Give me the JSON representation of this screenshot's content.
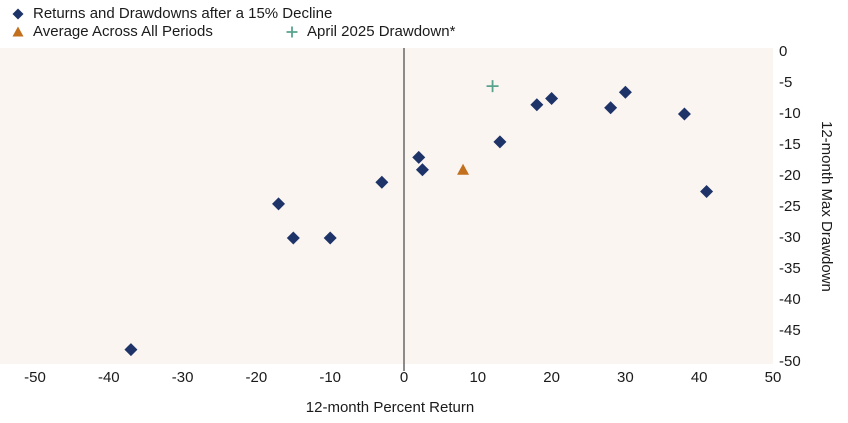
{
  "chart_data": {
    "type": "scatter",
    "title": "Returns and Drawdowns after a 15% Decline",
    "xlabel": "12-month Percent Return",
    "ylabel": "12-month Max Drawdown",
    "xlim": [
      -50,
      50
    ],
    "ylim": [
      -50,
      0
    ],
    "x_ticks": [
      -50,
      -40,
      -30,
      -20,
      -10,
      0,
      10,
      20,
      30,
      40,
      50
    ],
    "y_ticks": [
      0,
      -5,
      -10,
      -15,
      -20,
      -25,
      -30,
      -35,
      -40,
      -45,
      -50
    ],
    "grid": false,
    "legend_position": "top-left",
    "plot_bg_color": "#fbf5f2",
    "zero_line_color": "#707070",
    "text_color": "#1b1b1b",
    "series": [
      {
        "name": "Returns and Drawdowns after a 15% Decline",
        "marker": "diamond",
        "color": "#1e3468",
        "points": [
          [
            -37,
            -48
          ],
          [
            -17,
            -24.5
          ],
          [
            -15,
            -30
          ],
          [
            -10,
            -30
          ],
          [
            -3,
            -21
          ],
          [
            2,
            -17
          ],
          [
            2.5,
            -19
          ],
          [
            13,
            -14.5
          ],
          [
            18,
            -8.5
          ],
          [
            20,
            -7.5
          ],
          [
            28,
            -9
          ],
          [
            30,
            -6.5
          ],
          [
            38,
            -10
          ],
          [
            41,
            -22.5
          ]
        ]
      },
      {
        "name": "Average Across All Periods",
        "marker": "triangle",
        "color": "#c26f1e",
        "points": [
          [
            8,
            -19
          ]
        ]
      },
      {
        "name": "April 2025 Drawdown*",
        "marker": "plus",
        "color": "#57a38e",
        "points": [
          [
            12,
            -5.5
          ]
        ]
      }
    ]
  }
}
